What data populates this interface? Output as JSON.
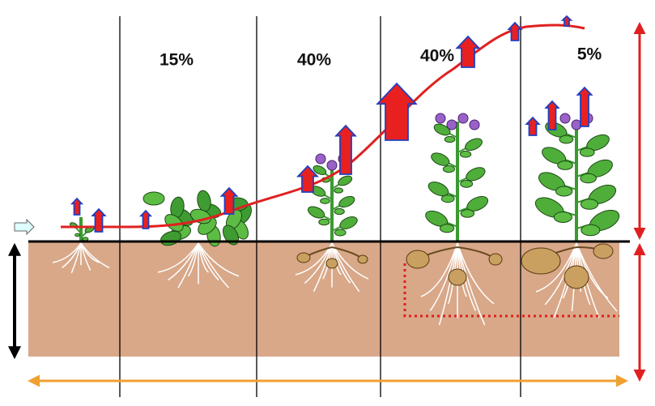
{
  "stages": [
    {
      "label": "15%"
    },
    {
      "label": "40%"
    },
    {
      "label": "40%"
    },
    {
      "label": "5%"
    }
  ]
}
